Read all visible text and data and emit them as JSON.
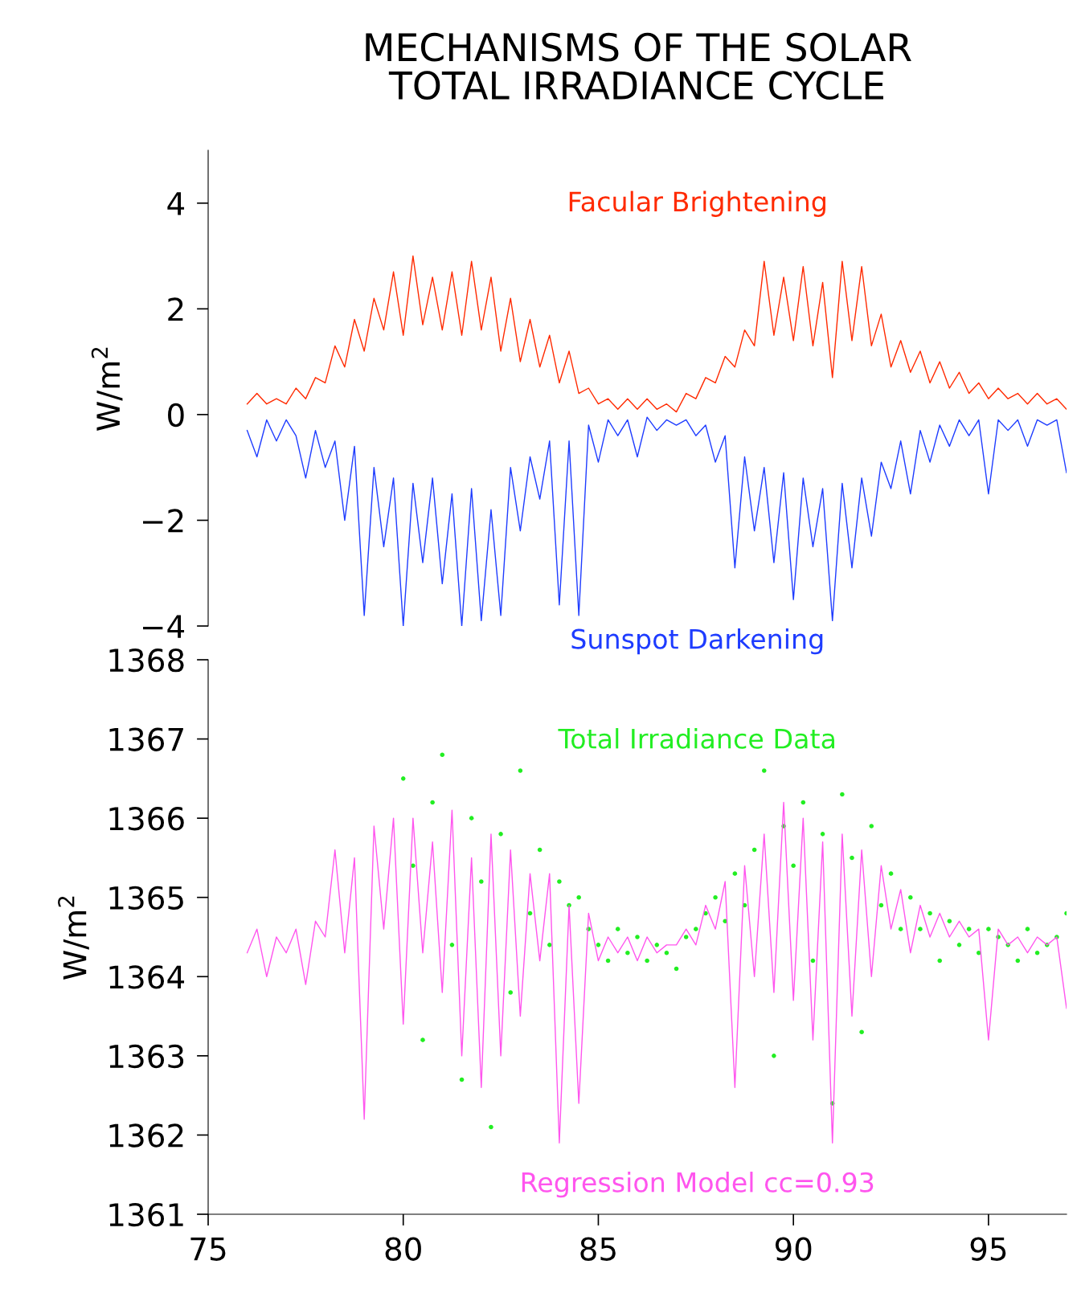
{
  "chart_data": [
    {
      "type": "line",
      "title": "MECHANISMS OF THE SOLAR\nTOTAL IRRADIANCE CYCLE",
      "ylabel": "W/m$^{2}$",
      "ylim": [
        -4,
        5
      ],
      "tick_labels": "y",
      "yticks": [
        {
          "value": -4,
          "label": "−4"
        },
        {
          "value": -2,
          "label": "−2"
        },
        0,
        2,
        4
      ],
      "x": [
        76.0,
        76.25,
        76.5,
        76.75,
        77.0,
        77.25,
        77.5,
        77.75,
        78.0,
        78.25,
        78.5,
        78.75,
        79.0,
        79.25,
        79.5,
        79.75,
        80.0,
        80.25,
        80.5,
        80.75,
        81.0,
        81.25,
        81.5,
        81.75,
        82.0,
        82.25,
        82.5,
        82.75,
        83.0,
        83.25,
        83.5,
        83.75,
        84.0,
        84.25,
        84.5,
        84.75,
        85.0,
        85.25,
        85.5,
        85.75,
        86.0,
        86.25,
        86.5,
        86.75,
        87.0,
        87.25,
        87.5,
        87.75,
        88.0,
        88.25,
        88.5,
        88.75,
        89.0,
        89.25,
        89.5,
        89.75,
        90.0,
        90.25,
        90.5,
        90.75,
        91.0,
        91.25,
        91.5,
        91.75,
        92.0,
        92.25,
        92.5,
        92.75,
        93.0,
        93.25,
        93.5,
        93.75,
        94.0,
        94.25,
        94.5,
        94.75,
        95.0,
        95.25,
        95.5,
        95.75,
        96.0,
        96.25,
        96.5,
        96.75,
        97.0
      ],
      "series": [
        {
          "name": "Facular Brightening",
          "color": "#ff2a00",
          "values": [
            0.2,
            0.4,
            0.2,
            0.3,
            0.2,
            0.5,
            0.3,
            0.7,
            0.6,
            1.3,
            0.9,
            1.8,
            1.2,
            2.2,
            1.6,
            2.7,
            1.5,
            3.0,
            1.7,
            2.6,
            1.6,
            2.7,
            1.5,
            2.9,
            1.6,
            2.6,
            1.2,
            2.2,
            1.0,
            1.8,
            0.9,
            1.5,
            0.6,
            1.2,
            0.4,
            0.5,
            0.2,
            0.3,
            0.1,
            0.3,
            0.1,
            0.3,
            0.1,
            0.2,
            0.05,
            0.4,
            0.3,
            0.7,
            0.6,
            1.1,
            0.9,
            1.6,
            1.3,
            2.9,
            1.5,
            2.6,
            1.4,
            2.8,
            1.3,
            2.5,
            0.7,
            2.9,
            1.4,
            2.8,
            1.3,
            1.9,
            0.9,
            1.4,
            0.8,
            1.2,
            0.6,
            1.0,
            0.5,
            0.8,
            0.4,
            0.6,
            0.3,
            0.5,
            0.3,
            0.4,
            0.2,
            0.4,
            0.2,
            0.3,
            0.1
          ]
        },
        {
          "name": "Sunspot Darkening",
          "color": "#1e3cff",
          "values": [
            -0.3,
            -0.8,
            -0.1,
            -0.5,
            -0.1,
            -0.4,
            -1.2,
            -0.3,
            -1.0,
            -0.5,
            -2.0,
            -0.6,
            -3.8,
            -1.0,
            -2.5,
            -1.2,
            -4.0,
            -1.3,
            -2.8,
            -1.2,
            -3.2,
            -1.5,
            -4.0,
            -1.4,
            -3.9,
            -1.8,
            -3.8,
            -1.0,
            -2.2,
            -0.8,
            -1.6,
            -0.5,
            -3.6,
            -0.5,
            -3.8,
            -0.2,
            -0.9,
            -0.1,
            -0.4,
            -0.1,
            -0.8,
            -0.05,
            -0.3,
            -0.1,
            -0.2,
            -0.1,
            -0.4,
            -0.2,
            -0.9,
            -0.4,
            -2.9,
            -0.8,
            -2.2,
            -1.0,
            -2.8,
            -1.1,
            -3.5,
            -1.2,
            -2.5,
            -1.4,
            -3.9,
            -1.3,
            -2.9,
            -1.2,
            -2.3,
            -0.9,
            -1.4,
            -0.5,
            -1.5,
            -0.3,
            -0.9,
            -0.2,
            -0.6,
            -0.1,
            -0.4,
            -0.1,
            -1.5,
            -0.1,
            -0.3,
            -0.1,
            -0.6,
            -0.1,
            -0.2,
            -0.1,
            -1.1
          ]
        }
      ]
    },
    {
      "type": "line",
      "ylabel": "W/m$^{2}$",
      "xlim": [
        75,
        97
      ],
      "ylim": [
        1361,
        1368
      ],
      "xticks": [
        75,
        80,
        85,
        90,
        95
      ],
      "yticks": [
        1361,
        1362,
        1363,
        1364,
        1365,
        1366,
        1367,
        1368
      ],
      "series": [
        {
          "name": "Regression Model cc=0.93",
          "color": "#ff55ee",
          "x": [
            76.0,
            76.25,
            76.5,
            76.75,
            77.0,
            77.25,
            77.5,
            77.75,
            78.0,
            78.25,
            78.5,
            78.75,
            79.0,
            79.25,
            79.5,
            79.75,
            80.0,
            80.25,
            80.5,
            80.75,
            81.0,
            81.25,
            81.5,
            81.75,
            82.0,
            82.25,
            82.5,
            82.75,
            83.0,
            83.25,
            83.5,
            83.75,
            84.0,
            84.25,
            84.5,
            84.75,
            85.0,
            85.25,
            85.5,
            85.75,
            86.0,
            86.25,
            86.5,
            86.75,
            87.0,
            87.25,
            87.5,
            87.75,
            88.0,
            88.25,
            88.5,
            88.75,
            89.0,
            89.25,
            89.5,
            89.75,
            90.0,
            90.25,
            90.5,
            90.75,
            91.0,
            91.25,
            91.5,
            91.75,
            92.0,
            92.25,
            92.5,
            92.75,
            93.0,
            93.25,
            93.5,
            93.75,
            94.0,
            94.25,
            94.5,
            94.75,
            95.0,
            95.25,
            95.5,
            95.75,
            96.0,
            96.25,
            96.5,
            96.75,
            97.0
          ],
          "values": [
            1364.3,
            1364.6,
            1364.0,
            1364.5,
            1364.3,
            1364.6,
            1363.9,
            1364.7,
            1364.5,
            1365.6,
            1364.3,
            1365.5,
            1362.2,
            1365.9,
            1364.6,
            1366.0,
            1363.4,
            1366.0,
            1364.3,
            1365.7,
            1363.8,
            1366.1,
            1363.0,
            1365.5,
            1362.6,
            1365.8,
            1363.0,
            1365.6,
            1363.5,
            1365.3,
            1364.2,
            1365.3,
            1361.9,
            1364.9,
            1362.4,
            1364.8,
            1364.2,
            1364.5,
            1364.3,
            1364.5,
            1364.2,
            1364.5,
            1364.3,
            1364.4,
            1364.4,
            1364.6,
            1364.4,
            1364.9,
            1364.6,
            1365.2,
            1362.6,
            1365.4,
            1364.0,
            1365.8,
            1363.8,
            1366.2,
            1363.7,
            1366.0,
            1363.2,
            1365.7,
            1361.9,
            1365.8,
            1363.5,
            1365.6,
            1364.0,
            1365.4,
            1364.6,
            1365.1,
            1364.3,
            1364.9,
            1364.5,
            1364.8,
            1364.5,
            1364.7,
            1364.5,
            1364.6,
            1363.2,
            1364.6,
            1364.4,
            1364.5,
            1364.3,
            1364.5,
            1364.4,
            1364.5,
            1363.6
          ]
        },
        {
          "name": "Total Irradiance Data",
          "type": "scatter",
          "marker": "circle",
          "color": "#22ee22",
          "x": [
            80.0,
            80.25,
            80.5,
            80.75,
            81.0,
            81.25,
            81.5,
            81.75,
            82.0,
            82.25,
            82.5,
            82.75,
            83.0,
            83.25,
            83.5,
            83.75,
            84.0,
            84.25,
            84.5,
            84.75,
            85.0,
            85.25,
            85.5,
            85.75,
            86.0,
            86.25,
            86.5,
            86.75,
            87.0,
            87.25,
            87.5,
            87.75,
            88.0,
            88.25,
            88.5,
            88.75,
            89.0,
            89.25,
            89.5,
            89.75,
            90.0,
            90.25,
            90.5,
            90.75,
            91.0,
            91.25,
            91.5,
            91.75,
            92.0,
            92.25,
            92.5,
            92.75,
            93.0,
            93.25,
            93.5,
            93.75,
            94.0,
            94.25,
            94.5,
            94.75,
            95.0,
            95.25,
            95.5,
            95.75,
            96.0,
            96.25,
            96.5,
            96.75,
            97.0
          ],
          "values": [
            1366.5,
            1365.4,
            1363.2,
            1366.2,
            1366.8,
            1364.4,
            1362.7,
            1366.0,
            1365.2,
            1362.1,
            1365.8,
            1363.8,
            1366.6,
            1364.8,
            1365.6,
            1364.4,
            1365.2,
            1364.9,
            1365.0,
            1364.6,
            1364.4,
            1364.2,
            1364.6,
            1364.3,
            1364.5,
            1364.2,
            1364.4,
            1364.3,
            1364.1,
            1364.5,
            1364.6,
            1364.8,
            1365.0,
            1364.7,
            1365.3,
            1364.9,
            1365.6,
            1366.6,
            1363.0,
            1365.9,
            1365.4,
            1366.2,
            1364.2,
            1365.8,
            1362.4,
            1366.3,
            1365.5,
            1363.3,
            1365.9,
            1364.9,
            1365.3,
            1364.6,
            1365.0,
            1364.6,
            1364.8,
            1364.2,
            1364.7,
            1364.4,
            1364.6,
            1364.3,
            1364.6,
            1364.5,
            1364.4,
            1364.2,
            1364.6,
            1364.3,
            1364.4,
            1364.5,
            1364.8
          ]
        }
      ]
    }
  ]
}
